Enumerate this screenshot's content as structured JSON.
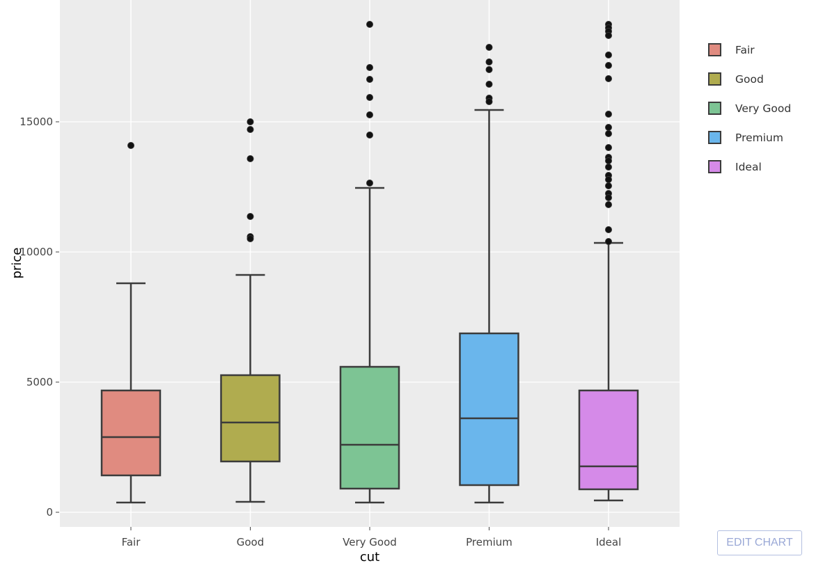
{
  "chart_data": {
    "type": "box",
    "title": "",
    "xlabel": "cut",
    "ylabel": "price",
    "categories": [
      "Fair",
      "Good",
      "Very Good",
      "Premium",
      "Ideal"
    ],
    "ylim": [
      -600,
      19700
    ],
    "yticks": [
      0,
      5000,
      10000,
      15000
    ],
    "ytick_labels": [
      "0",
      "5000",
      "10000",
      "15000"
    ],
    "grid": true,
    "legend_position": "right",
    "series": [
      {
        "name": "Fair",
        "color": "#e08b80",
        "whisker_low": 374,
        "q1": 1417,
        "median": 2888,
        "q3": 4679,
        "whisker_high": 8797,
        "outliers": [
          14091
        ]
      },
      {
        "name": "Good",
        "color": "#b0ac4f",
        "whisker_low": 401,
        "q1": 1952,
        "median": 3449,
        "q3": 5267,
        "whisker_high": 9118,
        "outliers": [
          15000,
          14706,
          13583,
          11364,
          10588,
          10508
        ]
      },
      {
        "name": "Very Good",
        "color": "#7dc494",
        "whisker_low": 374,
        "q1": 909,
        "median": 2594,
        "q3": 5588,
        "whisker_high": 12460,
        "outliers": [
          18743,
          17086,
          16631,
          15936,
          15267,
          14492,
          12647
        ]
      },
      {
        "name": "Premium",
        "color": "#6ab6ec",
        "whisker_low": 374,
        "q1": 1043,
        "median": 3610,
        "q3": 6872,
        "whisker_high": 15455,
        "outliers": [
          17861,
          17299,
          17005,
          16444,
          15909,
          15775
        ]
      },
      {
        "name": "Ideal",
        "color": "#d58ae8",
        "whisker_low": 455,
        "q1": 882,
        "median": 1765,
        "q3": 4679,
        "whisker_high": 10348,
        "outliers": [
          18743,
          18610,
          18476,
          18316,
          17567,
          17166,
          16658,
          15294,
          14786,
          14545,
          14011,
          13636,
          13503,
          13262,
          12941,
          12781,
          12540,
          12246,
          12086,
          11818,
          10856,
          10401
        ]
      }
    ]
  },
  "legend": {
    "items": [
      {
        "label": "Fair",
        "color": "#e08b80"
      },
      {
        "label": "Good",
        "color": "#b0ac4f"
      },
      {
        "label": "Very Good",
        "color": "#7dc494"
      },
      {
        "label": "Premium",
        "color": "#6ab6ec"
      },
      {
        "label": "Ideal",
        "color": "#d58ae8"
      }
    ]
  },
  "toolbar": {
    "edit_chart_label": "EDIT CHART"
  }
}
